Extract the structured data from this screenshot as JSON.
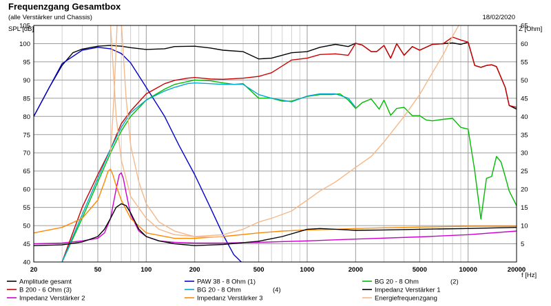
{
  "chart_data": {
    "type": "line",
    "title": "Frequenzgang Gesamtbox",
    "subtitle": "(alle Verstärker und Chassis)",
    "date": "18/02/2020",
    "xlabel": "f [Hz]",
    "ylabel_left": "SPL [dB]",
    "ylabel_right": "Z [Ohm]",
    "xscale": "log",
    "xlim": [
      20,
      20000
    ],
    "ylim_left": [
      40,
      105
    ],
    "ylim_right": [
      0,
      65
    ],
    "grid": true,
    "legend_position": "bottom",
    "x_ticks": [
      {
        "v": 20,
        "label": "20"
      },
      {
        "v": 50,
        "label": "50"
      },
      {
        "v": 100,
        "label": "100"
      },
      {
        "v": 200,
        "label": "200"
      },
      {
        "v": 500,
        "label": "500"
      },
      {
        "v": 1000,
        "label": "1000"
      },
      {
        "v": 2000,
        "label": "2000"
      },
      {
        "v": 5000,
        "label": "5000"
      },
      {
        "v": 10000,
        "label": "10000"
      },
      {
        "v": 20000,
        "label": "20000"
      }
    ],
    "y_ticks_left": [
      "40",
      "45",
      "50",
      "55",
      "60",
      "65",
      "70",
      "75",
      "80",
      "85",
      "90",
      "95",
      "100",
      "105"
    ],
    "y_ticks_right": [
      "5",
      "10",
      "15",
      "20",
      "25",
      "30",
      "35",
      "40",
      "45",
      "50",
      "55",
      "60",
      "65"
    ],
    "series": [
      {
        "name": "Amplitude gesamt",
        "axis": "left",
        "color": "#000000",
        "x": [
          20,
          25,
          30,
          35,
          40,
          50,
          60,
          70,
          80,
          100,
          130,
          150,
          200,
          250,
          300,
          400,
          500,
          600,
          800,
          1000,
          1200,
          1500,
          1800,
          2000,
          2200,
          2500,
          2700,
          3000,
          3300,
          3600,
          4000,
          4500,
          5000,
          6000,
          7000,
          8000,
          9000,
          10000,
          11000,
          12000,
          13000,
          14000,
          15000,
          17000,
          18000,
          20000
        ],
        "y": [
          80,
          88,
          94,
          97.5,
          98.5,
          99.3,
          99.5,
          99.3,
          98.9,
          98.4,
          98.6,
          99.2,
          99.3,
          98.8,
          98.2,
          97.8,
          95.8,
          96,
          97.5,
          97.8,
          99,
          99.8,
          99.2,
          100.1,
          99.6,
          97.8,
          97.8,
          99.5,
          96,
          100,
          96.8,
          99.2,
          98.2,
          99.8,
          100,
          100.2,
          99.8,
          100.4,
          94,
          93.5,
          94,
          94.2,
          93.7,
          88,
          83,
          82
        ]
      },
      {
        "name": "PAW 38 - 8 Ohm (1)",
        "axis": "left",
        "color": "#0000cc",
        "x": [
          20,
          30,
          40,
          50,
          60,
          70,
          80,
          100,
          130,
          160,
          200,
          250,
          300,
          350,
          400
        ],
        "y": [
          80,
          94.5,
          98.2,
          99,
          98.6,
          97.3,
          94.7,
          88,
          80,
          72,
          64,
          55,
          47.5,
          42,
          39.5
        ]
      },
      {
        "name": "BG 20 - 8 Ohm (2)",
        "axis": "left",
        "color": "#00bb00",
        "x": [
          30,
          40,
          50,
          60,
          70,
          80,
          100,
          130,
          150,
          200,
          250,
          300,
          350,
          400,
          500,
          600,
          700,
          800,
          1000,
          1200,
          1400,
          1600,
          1800,
          2000,
          2200,
          2500,
          2800,
          3000,
          3300,
          3600,
          4000,
          4500,
          5000,
          5500,
          6000,
          7000,
          8000,
          9000,
          10000,
          11000,
          12000,
          13000,
          14000,
          15000,
          16000,
          17000,
          18000,
          20000
        ],
        "y": [
          40,
          52,
          62,
          70,
          76,
          80,
          84.5,
          87.5,
          88.8,
          90,
          89.8,
          89.2,
          88.8,
          89,
          85,
          85,
          84.2,
          84.2,
          85.5,
          86,
          86,
          86.2,
          84.5,
          82.2,
          83.8,
          84.8,
          82,
          84.5,
          80.3,
          82.2,
          82.5,
          80.2,
          80.2,
          79,
          78.8,
          79.2,
          79.5,
          77,
          76.5,
          65,
          51.8,
          63,
          63.5,
          69,
          67.5,
          63.5,
          59.5,
          55.5
        ]
      },
      {
        "name": "Impedanz Verstärker 2",
        "axis": "right",
        "color": "#cc00cc",
        "x": [
          20,
          30,
          40,
          50,
          55,
          60,
          65,
          68,
          70,
          72,
          75,
          80,
          90,
          100,
          120,
          150,
          200,
          300,
          500,
          1000,
          2000,
          5000,
          10000,
          20000
        ],
        "y": [
          5,
          5.2,
          5.8,
          6.5,
          8,
          12,
          20,
          24,
          24.5,
          23,
          19,
          13,
          8.5,
          7,
          5.8,
          5.4,
          5.2,
          5.2,
          5.4,
          5.8,
          6.3,
          6.9,
          7.5,
          8.5
        ]
      },
      {
        "name": "B 200 - 6 Ohm (3)",
        "axis": "left",
        "color": "#cc0000",
        "x": [
          30,
          40,
          50,
          60,
          70,
          80,
          100,
          130,
          150,
          180,
          200,
          250,
          300,
          400,
          500,
          600,
          800,
          1000,
          1200,
          1500,
          1800,
          2000,
          2200,
          2500,
          2700,
          3000,
          3300,
          3600,
          4000,
          4500,
          5000,
          6000,
          7000,
          8000,
          9000,
          10000,
          11000,
          12000,
          13000,
          14000,
          15000,
          17000,
          18000,
          20000
        ],
        "y": [
          40,
          55,
          64,
          71,
          78,
          81.5,
          86.2,
          89,
          89.9,
          90.5,
          90.7,
          90.3,
          90.2,
          90.5,
          91,
          92,
          95.5,
          96,
          97,
          97.2,
          96.8,
          100.1,
          99.6,
          97.8,
          97.8,
          99.5,
          96,
          100,
          96.8,
          99.2,
          98.2,
          99.8,
          100,
          101.8,
          101,
          100.4,
          94,
          93.5,
          94,
          94.2,
          93.7,
          88,
          83,
          82.5
        ]
      },
      {
        "name": "BG 20 - 8 Ohm (4)",
        "axis": "left",
        "color": "#00aacc",
        "x": [
          30,
          40,
          50,
          60,
          70,
          80,
          100,
          130,
          150,
          180,
          200,
          250,
          300,
          400,
          500,
          600,
          800,
          1000,
          1200,
          1500,
          1800,
          2000
        ],
        "y": [
          40,
          53,
          63,
          71,
          77,
          81,
          84.5,
          87,
          88,
          89,
          89.2,
          89,
          88.8,
          88.8,
          86,
          85,
          84,
          85.6,
          86.2,
          86.2,
          85,
          82.5
        ]
      },
      {
        "name": "Impedanz Verstärker 3",
        "axis": "right",
        "color": "#ff8800",
        "x": [
          20,
          30,
          40,
          50,
          55,
          58,
          60,
          62,
          65,
          70,
          80,
          100,
          150,
          200,
          300,
          500,
          700,
          1000,
          1500,
          2000,
          3000,
          5000,
          10000,
          20000
        ],
        "y": [
          8,
          9.5,
          12,
          17,
          22,
          25,
          25.5,
          24,
          21,
          17,
          12,
          8,
          6.5,
          6.5,
          7,
          8,
          8.5,
          8.8,
          9,
          9.2,
          9.4,
          9.6,
          9.8,
          9.8
        ]
      },
      {
        "name": "Impedanz Verstärker 1",
        "axis": "right",
        "color": "#000000",
        "x": [
          20,
          30,
          40,
          50,
          55,
          60,
          65,
          70,
          75,
          80,
          90,
          100,
          120,
          150,
          200,
          300,
          500,
          700,
          1000,
          1200,
          1500,
          2000,
          3000,
          5000,
          10000,
          20000
        ],
        "y": [
          4.5,
          4.7,
          5.5,
          7,
          9,
          12,
          15,
          16,
          15.5,
          13.5,
          9,
          7,
          5.8,
          5,
          4.5,
          4.8,
          5.7,
          7,
          9,
          9.2,
          9,
          8.7,
          8.8,
          9,
          9.2,
          9.5
        ]
      },
      {
        "name": "Energiefrequenzgang",
        "axis": "right",
        "color": "#f5b888",
        "x": [
          60,
          65,
          70,
          80,
          100,
          120,
          150,
          200,
          300,
          400,
          500,
          600,
          800,
          1000,
          1200,
          1500,
          2000,
          2500,
          3000,
          4000,
          5000,
          6000,
          7000,
          8000,
          9000
        ],
        "y": [
          65,
          40,
          28,
          18,
          12,
          9,
          7.5,
          7,
          7.5,
          9,
          11,
          12,
          14,
          17,
          19.5,
          22,
          26,
          29,
          33,
          40,
          46,
          52,
          57,
          62,
          66
        ]
      },
      {
        "name": "Energiefrequenzgang-wall",
        "axis": "right",
        "color": "#f5b888",
        "x": [
          60,
          63,
          66,
          70,
          75,
          80,
          90,
          100,
          120,
          150,
          180,
          200,
          250,
          300
        ],
        "y": [
          30,
          45,
          66,
          66,
          45,
          32,
          22,
          16,
          11,
          8.5,
          7.5,
          7,
          6.8,
          7
        ]
      }
    ],
    "legend": [
      {
        "label": "Amplitude gesamt",
        "color": "#000000"
      },
      {
        "label": "PAW 38 - 8 Ohm (1)",
        "color": "#0000cc"
      },
      {
        "label": "BG 20 - 8 Ohm",
        "note": "(2)",
        "color": "#00bb00"
      },
      {
        "label": "B 200 - 6 Ohm (3)",
        "color": "#cc0000"
      },
      {
        "label": "BG 20 - 8 Ohm",
        "note": "(4)",
        "color": "#00aacc"
      },
      {
        "label": "Impedanz Verstärker 1",
        "color": "#000000"
      },
      {
        "label": "Impedanz Verstärker 2",
        "color": "#cc00cc"
      },
      {
        "label": "Impedanz Verstärker 3",
        "color": "#ff8800"
      },
      {
        "label": "Energiefrequenzgang",
        "color": "#f5b888"
      }
    ]
  }
}
